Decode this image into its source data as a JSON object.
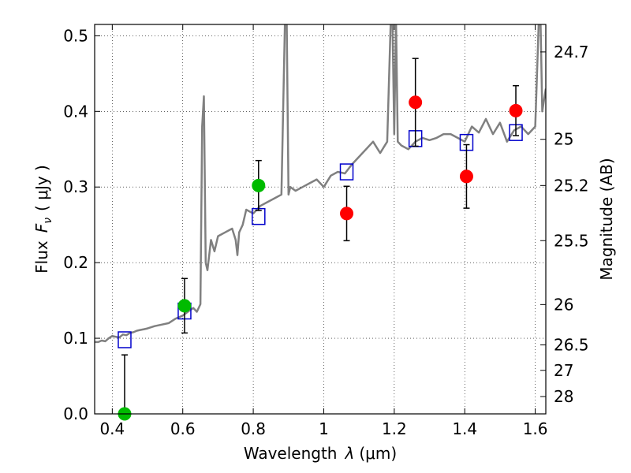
{
  "chart_data": {
    "type": "scatter",
    "xlabel_text": "Wavelength",
    "xlabel_sym": "λ",
    "xlabel_unit": "(μm)",
    "ylabel_text": "Flux",
    "ylabel_sym": "F",
    "ylabel_sub": "ν",
    "ylabel_unit": "( μJy )",
    "y2label": "Magnitude (AB)",
    "xlim": [
      0.35,
      1.63
    ],
    "ylim": [
      0.0,
      0.515
    ],
    "grid": true,
    "x_ticks": [
      0.4,
      0.6,
      0.8,
      1.0,
      1.2,
      1.4,
      1.6
    ],
    "x_tick_labels": [
      "0.4",
      "0.6",
      "0.8",
      "1",
      "1.2",
      "1.4",
      "1.6"
    ],
    "y_ticks": [
      0.0,
      0.1,
      0.2,
      0.3,
      0.4,
      0.5
    ],
    "y_tick_labels": [
      "0.0",
      "0.1",
      "0.2",
      "0.3",
      "0.4",
      "0.5"
    ],
    "mag_ticks": [
      24.7,
      25,
      25.2,
      25.5,
      26,
      26.5,
      27,
      28
    ],
    "mag_tick_labels": [
      "24.7",
      "25",
      "25.2",
      "25.5",
      "26",
      "26.5",
      "27",
      "28"
    ],
    "colors": {
      "model": "#808080",
      "green": "#00bb00",
      "red": "#ff0000",
      "square": "#0000cc",
      "errorbar": "#000000"
    },
    "series": [
      {
        "kind": "model_spectrum",
        "x": [
          0.35,
          0.36,
          0.37,
          0.38,
          0.39,
          0.4,
          0.41,
          0.42,
          0.43,
          0.44,
          0.45,
          0.46,
          0.47,
          0.48,
          0.49,
          0.5,
          0.52,
          0.54,
          0.56,
          0.58,
          0.6,
          0.62,
          0.63,
          0.64,
          0.65,
          0.655,
          0.66,
          0.665,
          0.67,
          0.68,
          0.69,
          0.7,
          0.72,
          0.74,
          0.75,
          0.755,
          0.76,
          0.77,
          0.78,
          0.8,
          0.82,
          0.84,
          0.86,
          0.88,
          0.89,
          0.895,
          0.9,
          0.905,
          0.92,
          0.94,
          0.96,
          0.98,
          1.0,
          1.02,
          1.04,
          1.06,
          1.08,
          1.1,
          1.12,
          1.14,
          1.16,
          1.18,
          1.19,
          1.195,
          1.2,
          1.205,
          1.21,
          1.22,
          1.24,
          1.26,
          1.28,
          1.3,
          1.32,
          1.34,
          1.36,
          1.38,
          1.4,
          1.42,
          1.44,
          1.46,
          1.48,
          1.5,
          1.52,
          1.54,
          1.56,
          1.58,
          1.6,
          1.61,
          1.615,
          1.62,
          1.63
        ],
        "y": [
          0.095,
          0.095,
          0.097,
          0.096,
          0.1,
          0.103,
          0.102,
          0.101,
          0.105,
          0.104,
          0.107,
          0.108,
          0.11,
          0.111,
          0.112,
          0.113,
          0.116,
          0.118,
          0.12,
          0.126,
          0.13,
          0.137,
          0.14,
          0.135,
          0.145,
          0.38,
          0.42,
          0.2,
          0.19,
          0.23,
          0.215,
          0.235,
          0.24,
          0.245,
          0.23,
          0.21,
          0.24,
          0.25,
          0.27,
          0.265,
          0.275,
          0.28,
          0.285,
          0.29,
          0.52,
          0.52,
          0.29,
          0.3,
          0.295,
          0.3,
          0.305,
          0.31,
          0.3,
          0.315,
          0.32,
          0.318,
          0.33,
          0.34,
          0.35,
          0.36,
          0.345,
          0.36,
          0.52,
          0.52,
          0.37,
          0.52,
          0.36,
          0.355,
          0.35,
          0.36,
          0.365,
          0.362,
          0.365,
          0.37,
          0.37,
          0.365,
          0.36,
          0.38,
          0.372,
          0.39,
          0.37,
          0.385,
          0.36,
          0.375,
          0.38,
          0.37,
          0.38,
          0.52,
          0.52,
          0.4,
          0.43
        ]
      },
      {
        "kind": "green_points",
        "x": [
          0.435,
          0.605,
          0.815
        ],
        "y": [
          0.0,
          0.143,
          0.302
        ],
        "err": [
          0.078,
          0.036,
          0.033
        ]
      },
      {
        "kind": "red_points",
        "x": [
          1.065,
          1.26,
          1.405,
          1.545
        ],
        "y": [
          0.265,
          0.412,
          0.314,
          0.401
        ],
        "err": [
          0.036,
          0.058,
          0.042,
          0.033
        ]
      },
      {
        "kind": "model_squares",
        "x": [
          0.435,
          0.605,
          0.815,
          1.065,
          1.26,
          1.405,
          1.545
        ],
        "y": [
          0.098,
          0.136,
          0.261,
          0.32,
          0.364,
          0.359,
          0.372
        ]
      }
    ]
  }
}
